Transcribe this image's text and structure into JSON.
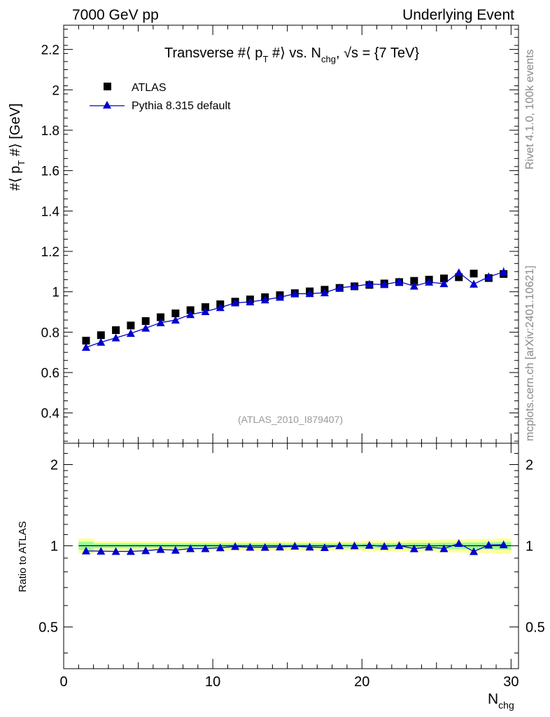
{
  "header": {
    "left": "7000 GeV pp",
    "right": "Underlying Event"
  },
  "side_labels": {
    "rivet": "Rivet 4.1.0,  100k events",
    "mcplots": "mcplots.cern.ch [arXiv:2401.10621]"
  },
  "watermark": "(ATLAS_2010_I879407)",
  "colors": {
    "data": "#000000",
    "mc": "#0000cc",
    "band_outer": "#ffff99",
    "band_inner": "#99ff99"
  },
  "chart_data": [
    {
      "type": "scatter",
      "panel": "main",
      "title": "Transverse #⟨ p_T #⟩ vs. N_chg, √s = {7 TeV}",
      "title_parts": {
        "pre": "Transverse #⟨ p",
        "sub1": "T",
        "mid": " #⟩ vs. N",
        "sub2": "chg",
        "post": ", √s = {7 TeV}"
      },
      "ylabel": "#⟨ p_T #⟩ [GeV]",
      "ylabel_parts": {
        "pre": "#⟨ p",
        "sub": "T",
        "post": " #⟩ [GeV]"
      },
      "xlim": [
        0,
        30.5
      ],
      "ylim": [
        0.25,
        2.32
      ],
      "yticks": [
        0.4,
        0.6,
        0.8,
        1,
        1.2,
        1.4,
        1.6,
        1.8,
        2,
        2.2
      ],
      "ytick_labels": [
        "0.4",
        "0.6",
        "0.8",
        "1",
        "1.2",
        "1.4",
        "1.6",
        "1.8",
        "2",
        "2.2"
      ],
      "legend_position": "top-left",
      "x": [
        1.5,
        2.5,
        3.5,
        4.5,
        5.5,
        6.5,
        7.5,
        8.5,
        9.5,
        10.5,
        11.5,
        12.5,
        13.5,
        14.5,
        15.5,
        16.5,
        17.5,
        18.5,
        19.5,
        20.5,
        21.5,
        22.5,
        23.5,
        24.5,
        25.5,
        26.5,
        27.5,
        28.5,
        29.5
      ],
      "series": [
        {
          "name": "ATLAS",
          "marker": "square",
          "values": [
            0.758,
            0.785,
            0.81,
            0.833,
            0.855,
            0.874,
            0.893,
            0.909,
            0.924,
            0.938,
            0.951,
            0.962,
            0.973,
            0.983,
            0.993,
            1.002,
            1.01,
            1.019,
            1.027,
            1.034,
            1.041,
            1.048,
            1.054,
            1.06,
            1.066,
            1.072,
            1.09,
            1.068,
            1.088
          ]
        },
        {
          "name": "Pythia 8.315 default",
          "marker": "triangle",
          "values": [
            0.725,
            0.75,
            0.772,
            0.794,
            0.82,
            0.847,
            0.86,
            0.887,
            0.902,
            0.922,
            0.945,
            0.95,
            0.96,
            0.973,
            0.99,
            0.991,
            0.995,
            1.02,
            1.027,
            1.038,
            1.036,
            1.05,
            1.028,
            1.048,
            1.04,
            1.095,
            1.038,
            1.074,
            1.098
          ],
          "errors": [
            0.003,
            0.003,
            0.003,
            0.003,
            0.003,
            0.003,
            0.004,
            0.004,
            0.004,
            0.004,
            0.004,
            0.005,
            0.005,
            0.005,
            0.006,
            0.006,
            0.006,
            0.007,
            0.007,
            0.008,
            0.009,
            0.01,
            0.011,
            0.012,
            0.014,
            0.016,
            0.018,
            0.02,
            0.022
          ]
        }
      ]
    },
    {
      "type": "scatter",
      "panel": "ratio",
      "ylabel": "Ratio to ATLAS",
      "xlabel": "N_chg",
      "xlabel_parts": {
        "pre": "N",
        "sub": "chg"
      },
      "xlim": [
        0,
        30.5
      ],
      "ylim": [
        0.35,
        2.4
      ],
      "log_y": true,
      "yticks": [
        0.5,
        1,
        2
      ],
      "ytick_labels": [
        "0.5",
        "1",
        "2"
      ],
      "xticks": [
        0,
        10,
        20,
        30
      ],
      "xtick_labels": [
        "0",
        "10",
        "20",
        "30"
      ],
      "x": [
        1.5,
        2.5,
        3.5,
        4.5,
        5.5,
        6.5,
        7.5,
        8.5,
        9.5,
        10.5,
        11.5,
        12.5,
        13.5,
        14.5,
        15.5,
        16.5,
        17.5,
        18.5,
        19.5,
        20.5,
        21.5,
        22.5,
        23.5,
        24.5,
        25.5,
        26.5,
        27.5,
        28.5,
        29.5
      ],
      "band_outer_halfwidth": [
        0.065,
        0.04,
        0.04,
        0.04,
        0.04,
        0.04,
        0.04,
        0.04,
        0.04,
        0.04,
        0.04,
        0.04,
        0.04,
        0.04,
        0.04,
        0.04,
        0.04,
        0.04,
        0.04,
        0.045,
        0.045,
        0.045,
        0.05,
        0.05,
        0.055,
        0.055,
        0.06,
        0.06,
        0.065
      ],
      "band_inner_halfwidth": [
        0.035,
        0.02,
        0.02,
        0.02,
        0.02,
        0.02,
        0.02,
        0.02,
        0.02,
        0.02,
        0.02,
        0.02,
        0.02,
        0.02,
        0.02,
        0.02,
        0.02,
        0.02,
        0.02,
        0.022,
        0.022,
        0.022,
        0.025,
        0.025,
        0.027,
        0.027,
        0.03,
        0.03,
        0.032
      ],
      "series": [
        {
          "name": "Pythia 8.315 default",
          "marker": "triangle",
          "values": [
            0.957,
            0.955,
            0.953,
            0.953,
            0.959,
            0.969,
            0.963,
            0.976,
            0.976,
            0.983,
            0.994,
            0.988,
            0.987,
            0.99,
            0.997,
            0.989,
            0.985,
            1.001,
            1.0,
            1.004,
            0.995,
            1.002,
            0.975,
            0.989,
            0.976,
            1.021,
            0.952,
            1.006,
            1.009
          ]
        }
      ]
    }
  ]
}
